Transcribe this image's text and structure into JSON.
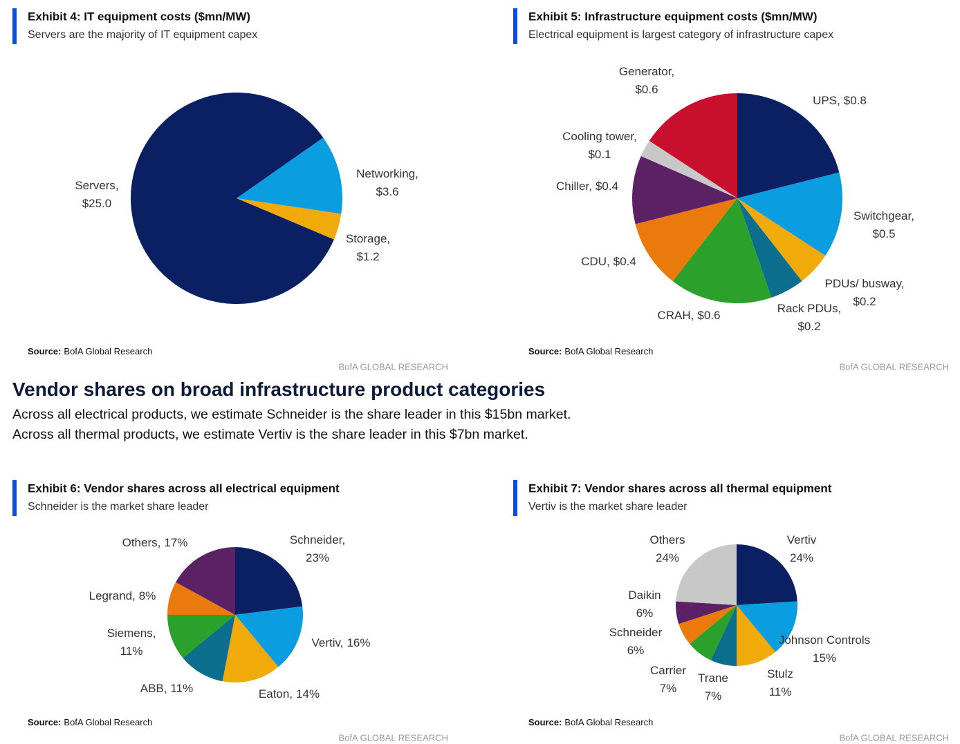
{
  "heading": "Vendor shares on broad infrastructure product categories",
  "paragraph": "Across all electrical products, we estimate Schneider is the share leader in this $15bn market. Across all thermal products, we estimate Vertiv is the share leader in this $7bn market.",
  "chart_data": [
    {
      "type": "pie",
      "title": "Exhibit 4: IT equipment costs ($mn/MW)",
      "subtitle": "Servers are the majority of IT equipment capex",
      "categories": [
        "Networking,",
        "Storage,",
        "Servers,"
      ],
      "values": [
        3.6,
        1.2,
        25.0
      ],
      "value_labels": [
        "$3.6",
        "$1.2",
        "$25.0"
      ],
      "colors": [
        "#0a9ee0",
        "#f0aa0a",
        "#0a2063"
      ],
      "source_label": "Source:",
      "source": "BofA Global Research",
      "brand": "BofA GLOBAL RESEARCH"
    },
    {
      "type": "pie",
      "title": "Exhibit 5: Infrastructure equipment costs ($mn/MW)",
      "subtitle": "Electrical equipment is largest category of infrastructure capex",
      "categories": [
        "UPS,",
        "Switchgear,",
        "PDUs/ busway,",
        "Rack PDUs,",
        "CRAH,",
        "CDU,",
        "Chiller,",
        "Cooling tower,",
        "Generator,"
      ],
      "values": [
        0.8,
        0.5,
        0.2,
        0.2,
        0.6,
        0.4,
        0.4,
        0.1,
        0.6
      ],
      "value_labels": [
        "$0.8",
        "$0.5",
        "$0.2",
        "$0.2",
        "$0.6",
        "$0.4",
        "$0.4",
        "$0.1",
        "$0.6"
      ],
      "colors": [
        "#0a2063",
        "#0a9ee0",
        "#f0aa0a",
        "#0a6e8c",
        "#2ba02b",
        "#ea7a0b",
        "#5c2165",
        "#c8c8c8",
        "#c8102e"
      ],
      "source_label": "Source:",
      "source": "BofA Global Research",
      "brand": "BofA GLOBAL RESEARCH"
    },
    {
      "type": "pie",
      "title": "Exhibit 6: Vendor shares across all electrical equipment",
      "subtitle": "Schneider is the market share leader",
      "categories": [
        "Schneider,",
        "Vertiv,",
        "Eaton,",
        "ABB,",
        "Siemens,",
        "Legrand,",
        "Others,"
      ],
      "values": [
        23,
        16,
        14,
        11,
        11,
        8,
        17
      ],
      "value_labels": [
        "23%",
        "16%",
        "14%",
        "11%",
        "11%",
        "8%",
        "17%"
      ],
      "colors": [
        "#0a2063",
        "#0a9ee0",
        "#f0aa0a",
        "#0a6e8c",
        "#2ba02b",
        "#ea7a0b",
        "#5c2165"
      ],
      "source_label": "Source:",
      "source": "BofA Global Research",
      "brand": "BofA GLOBAL RESEARCH"
    },
    {
      "type": "pie",
      "title": "Exhibit 7: Vendor shares across all thermal equipment",
      "subtitle": "Vertiv is the market share leader",
      "categories": [
        "Vertiv",
        "Johnson Controls",
        "Stulz",
        "Trane",
        "Carrier",
        "Schneider",
        "Daikin",
        "Others"
      ],
      "values": [
        24,
        15,
        11,
        7,
        7,
        6,
        6,
        24
      ],
      "value_labels": [
        "24%",
        "15%",
        "11%",
        "7%",
        "7%",
        "6%",
        "6%",
        "24%"
      ],
      "colors": [
        "#0a2063",
        "#0a9ee0",
        "#f0aa0a",
        "#0a6e8c",
        "#2ba02b",
        "#ea7a0b",
        "#5c2165",
        "#c8c8c8"
      ],
      "source_label": "Source:",
      "source": "BofA Global Research",
      "brand": "BofA GLOBAL RESEARCH"
    }
  ]
}
